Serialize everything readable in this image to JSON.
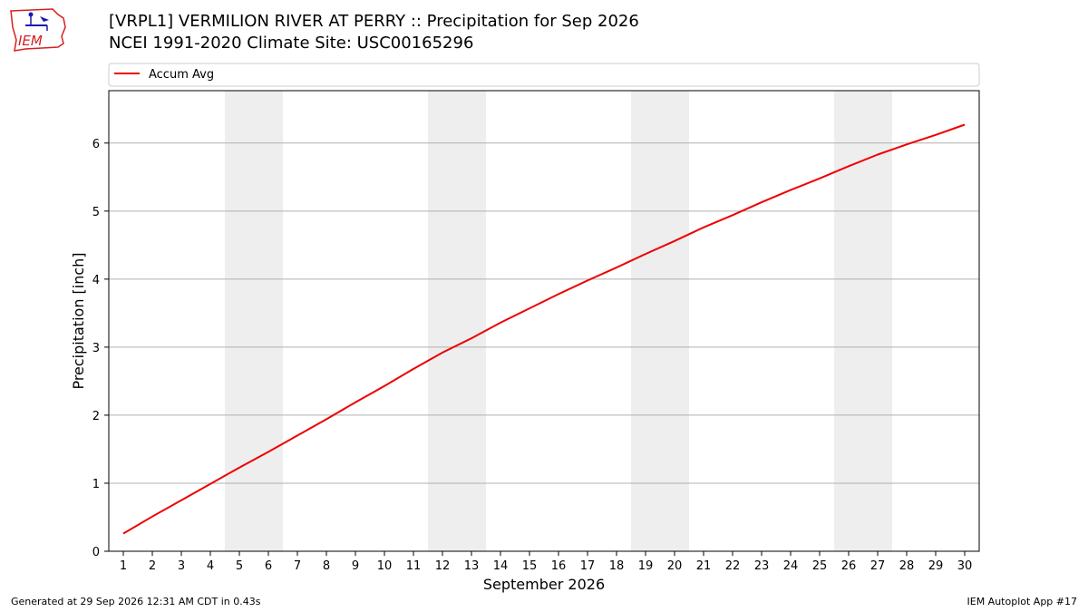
{
  "header": {
    "title_line1": "[VRPL1] VERMILION RIVER  AT PERRY :: Precipitation for Sep 2026",
    "title_line2": "NCEI 1991-2020 Climate Site: USC00165296",
    "logo_text": "IEM"
  },
  "footer": {
    "generated": "Generated at 29 Sep 2026 12:31 AM CDT in 0.43s",
    "app": "IEM Autoplot App #17"
  },
  "colors": {
    "line": "#ee0000",
    "weekend_band": "#eeeeee",
    "grid": "#b0b0b0",
    "logo_red": "#d62020",
    "logo_blue": "#1a1ab0"
  },
  "chart_data": {
    "type": "line",
    "title": "[VRPL1] VERMILION RIVER  AT PERRY :: Precipitation for Sep 2026",
    "xlabel": "September 2026",
    "ylabel": "Precipitation [inch]",
    "x": [
      1,
      2,
      3,
      4,
      5,
      6,
      7,
      8,
      9,
      10,
      11,
      12,
      13,
      14,
      15,
      16,
      17,
      18,
      19,
      20,
      21,
      22,
      23,
      24,
      25,
      26,
      27,
      28,
      29,
      30
    ],
    "xlim": [
      0.5,
      30.5
    ],
    "ylim": [
      0,
      6.77
    ],
    "yticks": [
      0,
      1,
      2,
      3,
      4,
      5,
      6
    ],
    "grid": "y",
    "legend": "top",
    "weekend_bands": [
      [
        4.5,
        6.5
      ],
      [
        11.5,
        13.5
      ],
      [
        18.5,
        20.5
      ],
      [
        25.5,
        27.5
      ]
    ],
    "series": [
      {
        "name": "Accum Avg",
        "values": [
          0.26,
          0.51,
          0.75,
          0.99,
          1.23,
          1.46,
          1.7,
          1.94,
          2.19,
          2.43,
          2.68,
          2.92,
          3.13,
          3.36,
          3.57,
          3.78,
          3.98,
          4.17,
          4.37,
          4.56,
          4.76,
          4.94,
          5.13,
          5.31,
          5.48,
          5.66,
          5.83,
          5.98,
          6.12,
          6.27
        ]
      }
    ]
  }
}
